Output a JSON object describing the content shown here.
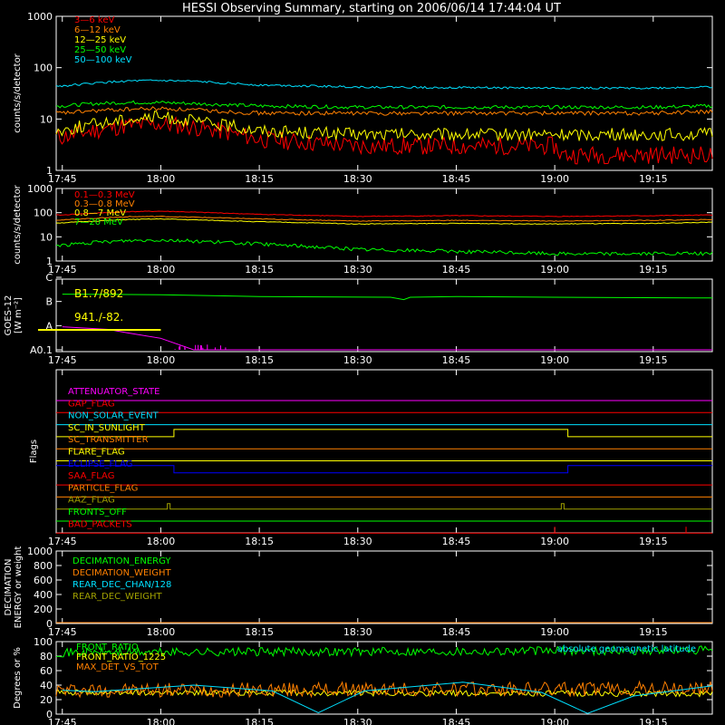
{
  "title": "HESSI Observing Summary, starting on 2006/06/14 17:44:04 UT",
  "time_ticks": [
    "17:45",
    "18:00",
    "18:15",
    "18:30",
    "18:45",
    "19:00",
    "19:15"
  ],
  "colors": {
    "background": "#000000",
    "red": "#ff0000",
    "orange": "#ff8000",
    "yellow": "#ffff00",
    "green": "#00ff00",
    "cyan": "#00e0ff",
    "magenta": "#ff00ff",
    "blue": "#0000ff",
    "olive": "#a0a000",
    "white": "#ffffff"
  },
  "chart_data": [
    {
      "type": "line",
      "panel": "low-energy-rates",
      "ylabel": "counts/s/detector",
      "y_scale": "log",
      "ylim": [
        1,
        1000
      ],
      "y_ticks": [
        "1",
        "10",
        "100",
        "1000"
      ],
      "x_range": [
        "17:44:04",
        "19:24"
      ],
      "series": [
        {
          "name": "3—6 keV",
          "color": "#ff0000",
          "x": [
            "17:45",
            "17:50",
            "17:55",
            "18:00",
            "18:05",
            "18:10",
            "18:15",
            "18:30",
            "18:45",
            "19:00",
            "19:01",
            "19:15",
            "19:24"
          ],
          "values": [
            4.5,
            6,
            7.5,
            8,
            7,
            5.5,
            4,
            3,
            3,
            3,
            2,
            2,
            2
          ]
        },
        {
          "name": "6—12 keV",
          "color": "#ff8000",
          "x": [
            "17:45",
            "17:50",
            "17:55",
            "18:00",
            "18:05",
            "18:10",
            "18:15",
            "18:30",
            "18:45",
            "19:00",
            "19:15",
            "19:24"
          ],
          "values": [
            13,
            14.5,
            15.5,
            16,
            15,
            14,
            13,
            13,
            13,
            13,
            13,
            14
          ]
        },
        {
          "name": "12—25 keV",
          "color": "#ffff00",
          "x": [
            "17:45",
            "17:50",
            "17:55",
            "18:00",
            "18:05",
            "18:10",
            "18:15",
            "18:30",
            "18:45",
            "19:00",
            "19:15",
            "19:24"
          ],
          "values": [
            6,
            8,
            10,
            11,
            9,
            7.5,
            6,
            5,
            5,
            5,
            5,
            5
          ]
        },
        {
          "name": "25—50 keV",
          "color": "#00ff00",
          "x": [
            "17:45",
            "17:50",
            "17:55",
            "18:00",
            "18:05",
            "18:10",
            "18:15",
            "18:30",
            "18:45",
            "19:00",
            "19:15",
            "19:24"
          ],
          "values": [
            18,
            20,
            21,
            21,
            20,
            19,
            18,
            17,
            17,
            17,
            17,
            18
          ]
        },
        {
          "name": "50—100 keV",
          "color": "#00e0ff",
          "x": [
            "17:45",
            "17:50",
            "17:55",
            "18:00",
            "18:05",
            "18:10",
            "18:15",
            "18:30",
            "18:45",
            "19:00",
            "19:15",
            "19:24"
          ],
          "values": [
            44,
            50,
            55,
            56,
            54,
            50,
            46,
            42,
            41,
            40,
            40,
            42
          ]
        }
      ]
    },
    {
      "type": "line",
      "panel": "high-energy-rates",
      "ylabel": "counts/s/detector",
      "y_scale": "log",
      "ylim": [
        1,
        1000
      ],
      "y_ticks": [
        "1",
        "10",
        "100",
        "1000"
      ],
      "x_range": [
        "17:44:04",
        "19:24"
      ],
      "series": [
        {
          "name": "0.1—0.3 MeV",
          "color": "#ff0000",
          "x": [
            "17:45",
            "17:55",
            "18:00",
            "18:15",
            "18:30",
            "18:45",
            "19:00",
            "19:15",
            "19:24"
          ],
          "values": [
            80,
            110,
            115,
            85,
            70,
            75,
            70,
            75,
            80
          ]
        },
        {
          "name": "0.3—0.8 MeV",
          "color": "#ff8000",
          "x": [
            "17:45",
            "17:55",
            "18:00",
            "18:15",
            "18:30",
            "18:45",
            "19:00",
            "19:15",
            "19:24"
          ],
          "values": [
            50,
            68,
            70,
            55,
            45,
            48,
            45,
            48,
            52
          ]
        },
        {
          "name": "0.8—7 MeV",
          "color": "#ffff00",
          "x": [
            "17:45",
            "17:55",
            "18:00",
            "18:15",
            "18:30",
            "18:45",
            "19:00",
            "19:15",
            "19:24"
          ],
          "values": [
            38,
            52,
            55,
            42,
            34,
            36,
            34,
            36,
            40
          ]
        },
        {
          "name": "7—20 MeV",
          "color": "#00ff00",
          "x": [
            "17:45",
            "17:55",
            "18:00",
            "18:15",
            "18:30",
            "18:45",
            "19:00",
            "19:15",
            "19:24"
          ],
          "values": [
            4.5,
            7,
            7.5,
            5,
            3,
            2.5,
            2,
            2,
            2
          ]
        }
      ]
    },
    {
      "type": "line",
      "panel": "goes",
      "ylabel_lines": [
        "GOES-12",
        "[W m⁻²]"
      ],
      "y_ticks": [
        "A0.1",
        "A",
        "B",
        "C"
      ],
      "annotations": [
        "B1.7/892",
        "941./-82."
      ],
      "series": [
        {
          "color": "#00ff00",
          "x": [
            "17:45",
            "18:00",
            "18:15",
            "18:35",
            "18:37",
            "18:38",
            "18:45",
            "19:00",
            "19:24"
          ],
          "values": [
            "B2.0",
            "B1.9",
            "B1.6",
            "B1.5",
            "B1.2",
            "B1.5",
            "B1.6",
            "B1.5",
            "B1.4"
          ]
        },
        {
          "color": "#ff00ff",
          "x": [
            "17:45",
            "17:52",
            "17:55",
            "18:00",
            "18:05",
            "19:24"
          ],
          "values": [
            "A0.9",
            "A0.7",
            "A0.5",
            "A0.3",
            "A0.1",
            "A0.1"
          ]
        }
      ]
    },
    {
      "type": "line",
      "panel": "flags",
      "ylabel": "Flags",
      "flags": [
        {
          "name": "ATTENUATOR_STATE",
          "color": "#ff00ff"
        },
        {
          "name": "GAP_FLAG",
          "color": "#ff0000"
        },
        {
          "name": "NON_SOLAR_EVENT",
          "color": "#00e0ff"
        },
        {
          "name": "SC_IN_SUNLIGHT",
          "color": "#ffff00"
        },
        {
          "name": "SC_TRANSMITTER",
          "color": "#ff8000"
        },
        {
          "name": "FLARE_FLAG",
          "color": "#ffff00"
        },
        {
          "name": "ECLIPSE_FLAG",
          "color": "#0000ff"
        },
        {
          "name": "SAA_FLAG",
          "color": "#ff0000"
        },
        {
          "name": "PARTICLE_FLAG",
          "color": "#ff8000"
        },
        {
          "name": "AAZ_FLAG",
          "color": "#a0a000"
        },
        {
          "name": "FRONTS_OFF",
          "color": "#00ff00"
        },
        {
          "name": "BAD_PACKETS",
          "color": "#ff0000"
        }
      ],
      "sunlight_interval": [
        "18:02",
        "19:02"
      ],
      "eclipse_active": [
        [
          "17:45",
          "18:02"
        ],
        [
          "19:02",
          "19:24"
        ]
      ],
      "aaz_spikes": [
        "18:01",
        "19:01"
      ],
      "bad_packet_spikes": [
        "19:00",
        "19:20"
      ]
    },
    {
      "type": "line",
      "panel": "decimation",
      "ylabel_lines": [
        "DECIMATION",
        "ENERGY or weight"
      ],
      "ylim": [
        0,
        1000
      ],
      "y_ticks": [
        "0",
        "200",
        "400",
        "600",
        "800",
        "1000"
      ],
      "series": [
        {
          "name": "DECIMATION_ENERGY",
          "color": "#00ff00"
        },
        {
          "name": "DECIMATION_WEIGHT",
          "color": "#ff8000"
        },
        {
          "name": "REAR_DEC_CHAN/128",
          "color": "#00e0ff"
        },
        {
          "name": "REAR_DEC_WEIGHT",
          "color": "#a0a000"
        }
      ]
    },
    {
      "type": "line",
      "panel": "ratios",
      "ylabel": "Degrees or %",
      "ylim": [
        0,
        100
      ],
      "y_ticks": [
        "0",
        "20",
        "40",
        "60",
        "80",
        "100"
      ],
      "right_label": "absolute geomagnetic latitude",
      "series": [
        {
          "name": "FRONT_RATIO",
          "color": "#00ff00",
          "x": [
            "17:45",
            "19:24"
          ],
          "values": [
            85,
            88
          ]
        },
        {
          "name": "FRONT_RATIO_1225",
          "color": "#ffff00",
          "x": [
            "17:45",
            "19:24"
          ],
          "values": [
            30,
            28
          ]
        },
        {
          "name": "MAX_DET_VS_TOT",
          "color": "#ff8000",
          "x": [
            "17:45",
            "19:24"
          ],
          "values": [
            33,
            35
          ]
        },
        {
          "name": "absolute geomagnetic latitude",
          "color": "#00e0ff",
          "x": [
            "17:45",
            "17:50",
            "18:05",
            "18:17",
            "18:24",
            "18:31",
            "18:46",
            "18:58",
            "19:05",
            "19:12",
            "19:24"
          ],
          "values": [
            33,
            31,
            40,
            32,
            2,
            32,
            44,
            30,
            1,
            25,
            39
          ]
        }
      ]
    }
  ]
}
